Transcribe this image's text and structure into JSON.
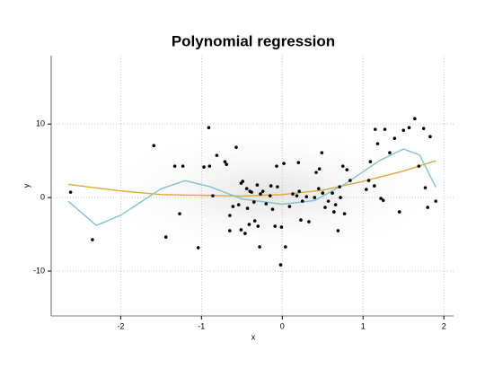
{
  "chart_data": {
    "type": "scatter",
    "title": "Polynomial regression",
    "x_label": "x",
    "y_label": "y",
    "xlim": [
      -2.86,
      2.12
    ],
    "ylim": [
      -16.1,
      19.3
    ],
    "xticks": [
      -2,
      -1,
      0,
      1,
      2
    ],
    "yticks": [
      -10,
      0,
      10
    ],
    "grid": true,
    "points": {
      "color": "#000000",
      "x": [
        -2.62,
        -2.35,
        -1.59,
        -1.44,
        -1.33,
        -1.27,
        -1.23,
        -1.04,
        -0.97,
        -0.91,
        -0.9,
        -0.86,
        -0.81,
        -0.71,
        -0.69,
        -0.65,
        -0.65,
        -0.61,
        -0.57,
        -0.54,
        -0.51,
        -0.51,
        -0.49,
        -0.46,
        -0.44,
        -0.43,
        -0.41,
        -0.4,
        -0.38,
        -0.35,
        -0.34,
        -0.31,
        -0.3,
        -0.28,
        -0.27,
        -0.24,
        -0.2,
        -0.15,
        -0.14,
        -0.12,
        -0.09,
        -0.07,
        -0.06,
        -0.02,
        -0.01,
        0.02,
        0.04,
        0.09,
        0.13,
        0.18,
        0.2,
        0.21,
        0.23,
        0.25,
        0.3,
        0.33,
        0.4,
        0.42,
        0.45,
        0.46,
        0.49,
        0.5,
        0.53,
        0.57,
        0.62,
        0.64,
        0.66,
        0.69,
        0.71,
        0.72,
        0.75,
        0.77,
        0.8,
        0.84,
        1.04,
        1.07,
        1.09,
        1.14,
        1.15,
        1.18,
        1.22,
        1.25,
        1.27,
        1.33,
        1.39,
        1.45,
        1.5,
        1.57,
        1.64,
        1.69,
        1.75,
        1.77,
        1.8,
        1.83,
        1.9
      ],
      "values": [
        0.73,
        -5.73,
        7.07,
        -5.37,
        4.27,
        -2.2,
        4.27,
        -6.83,
        4.15,
        9.51,
        4.27,
        0.24,
        5.73,
        4.88,
        4.51,
        -2.44,
        -4.51,
        -1.22,
        6.83,
        -0.98,
        -4.39,
        1.95,
        2.2,
        -4.88,
        1.22,
        -1.46,
        -3.66,
        0.85,
        0.73,
        -0.61,
        -3.17,
        1.71,
        -3.9,
        -6.71,
        0.49,
        0.85,
        -0.85,
        0.24,
        1.59,
        -1.59,
        -3.9,
        4.27,
        1.46,
        -9.15,
        -4.02,
        4.63,
        -6.71,
        -1.22,
        0.49,
        0.24,
        4.76,
        0.85,
        -3.05,
        -0.49,
        0.12,
        -3.29,
        0,
        3.41,
        1.22,
        3.9,
        6.1,
        0.61,
        -1.34,
        -0.49,
        0.61,
        -1.95,
        -0.98,
        -4.51,
        1.46,
        0,
        4.27,
        -2.2,
        3.78,
        2.32,
        1.1,
        2.32,
        4.88,
        1.59,
        9.27,
        7.32,
        -0.12,
        -0.37,
        9.27,
        6.1,
        8.05,
        -1.95,
        9.15,
        9.51,
        10.73,
        4.27,
        9.39,
        1.34,
        -1.34,
        8.29,
        -0.49
      ]
    },
    "curves": [
      {
        "color": "#e0a63a",
        "x": [
          -2.65,
          -2,
          -1.5,
          -1,
          -0.5,
          0,
          0.5,
          1,
          1.5,
          1.9
        ],
        "values": [
          1.8,
          0.9,
          0.4,
          0.3,
          0.2,
          0.4,
          1.0,
          2.2,
          3.6,
          5.0
        ]
      },
      {
        "color": "#7fc4cc",
        "x": [
          -2.65,
          -2.3,
          -2,
          -1.5,
          -1.2,
          -0.9,
          -0.5,
          0,
          0.4,
          0.8,
          1.2,
          1.5,
          1.7,
          1.9
        ],
        "values": [
          -0.5,
          -3.8,
          -2.4,
          1.2,
          2.3,
          1.5,
          -0.2,
          -0.9,
          -0.4,
          2.0,
          5.0,
          6.6,
          5.8,
          1.4
        ]
      }
    ]
  }
}
